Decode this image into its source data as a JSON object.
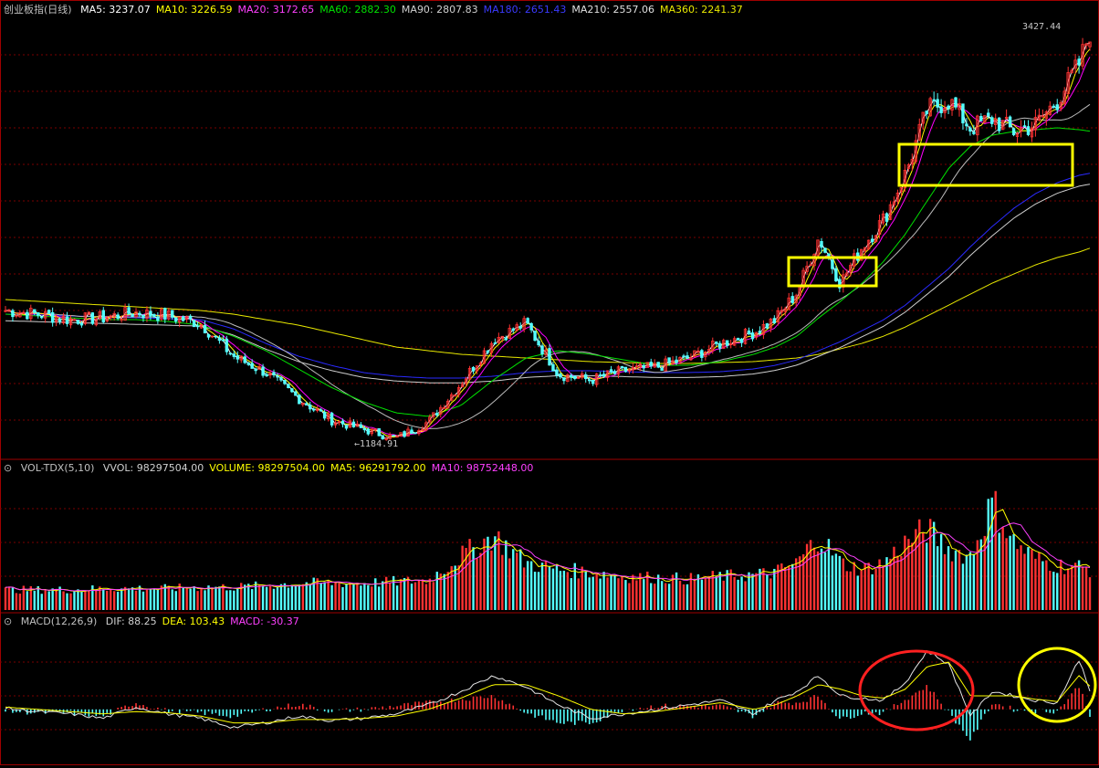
{
  "colors": {
    "up": "#ff3232",
    "down": "#54ffff",
    "grid": "#7a0000",
    "ma5": "#ffffff",
    "ma10": "#ffff00",
    "ma20": "#ff00ff",
    "ma60": "#00e000",
    "ma90": "#ffffff",
    "ma180": "#2a2aff",
    "ma210": "#ffffff",
    "ma360": "#e8e800",
    "box": "#ffff00",
    "circle_red": "#ff2020",
    "circle_yellow": "#ffff00"
  },
  "main": {
    "title": "创业板指(日线)",
    "ma": [
      {
        "label": "MA5: 3237.07",
        "color": "#ffffff"
      },
      {
        "label": "MA10: 3226.59",
        "color": "#ffff00"
      },
      {
        "label": "MA20: 3172.65",
        "color": "#ff40ff"
      },
      {
        "label": "MA60: 2882.30",
        "color": "#00e000"
      },
      {
        "label": "MA90: 2807.83",
        "color": "#d0d0d0"
      },
      {
        "label": "MA180: 2651.43",
        "color": "#3a3aff"
      },
      {
        "label": "MA210: 2557.06",
        "color": "#e0e0e0"
      },
      {
        "label": "MA360: 2241.37",
        "color": "#e8e800"
      }
    ],
    "high_label": "3427.44",
    "low_label": "1184.91"
  },
  "volume": {
    "title": "VOL-TDX(5,10)",
    "items": [
      {
        "label": "VVOL: 98297504.00",
        "color": "#d0d0d0"
      },
      {
        "label": "VOLUME: 98297504.00",
        "color": "#ffff00"
      },
      {
        "label": "MA5: 96291792.00",
        "color": "#ffff00"
      },
      {
        "label": "MA10: 98752448.00",
        "color": "#ff40ff"
      }
    ]
  },
  "macd": {
    "title": "MACD(12,26,9)",
    "items": [
      {
        "label": "DIF: 88.25",
        "color": "#d0d0d0"
      },
      {
        "label": "DEA: 103.43",
        "color": "#ffff00"
      },
      {
        "label": "MACD: -30.37",
        "color": "#ff40ff"
      }
    ]
  },
  "chart_data": {
    "type": "line",
    "x": [
      0,
      0.03,
      0.06,
      0.09,
      0.12,
      0.15,
      0.18,
      0.21,
      0.24,
      0.27,
      0.3,
      0.33,
      0.36,
      0.39,
      0.42,
      0.45,
      0.48,
      0.51,
      0.54,
      0.57,
      0.6,
      0.63,
      0.66,
      0.69,
      0.71,
      0.73,
      0.75,
      0.77,
      0.79,
      0.81,
      0.83,
      0.85,
      0.87,
      0.89,
      0.91,
      0.93,
      0.95,
      0.97,
      0.99,
      1.0
    ],
    "close": [
      1900,
      1880,
      1850,
      1860,
      1890,
      1870,
      1830,
      1650,
      1560,
      1420,
      1300,
      1250,
      1200,
      1290,
      1500,
      1740,
      1830,
      1550,
      1520,
      1570,
      1590,
      1640,
      1720,
      1780,
      1850,
      2000,
      2300,
      2050,
      2250,
      2400,
      2650,
      3000,
      3050,
      2900,
      2950,
      2880,
      2920,
      3050,
      3250,
      3427
    ],
    "ma60": [
      1880,
      1870,
      1860,
      1850,
      1850,
      1840,
      1820,
      1760,
      1680,
      1580,
      1480,
      1400,
      1340,
      1320,
      1380,
      1520,
      1640,
      1680,
      1660,
      1630,
      1600,
      1600,
      1620,
      1660,
      1700,
      1760,
      1860,
      1950,
      2050,
      2170,
      2320,
      2500,
      2680,
      2800,
      2860,
      2880,
      2890,
      2900,
      2890,
      2882
    ],
    "ma180": [
      1880,
      1875,
      1870,
      1865,
      1860,
      1855,
      1850,
      1800,
      1720,
      1650,
      1600,
      1560,
      1540,
      1530,
      1530,
      1540,
      1560,
      1570,
      1570,
      1565,
      1560,
      1560,
      1565,
      1580,
      1600,
      1630,
      1680,
      1730,
      1790,
      1850,
      1930,
      2030,
      2130,
      2250,
      2360,
      2460,
      2540,
      2600,
      2640,
      2651
    ],
    "ma360": [
      1960,
      1950,
      1940,
      1930,
      1920,
      1910,
      1900,
      1880,
      1850,
      1820,
      1780,
      1740,
      1700,
      1680,
      1660,
      1650,
      1640,
      1630,
      1620,
      1615,
      1610,
      1610,
      1615,
      1620,
      1630,
      1640,
      1660,
      1690,
      1720,
      1760,
      1810,
      1870,
      1930,
      1990,
      2050,
      2100,
      2150,
      2190,
      2220,
      2241
    ],
    "ylim": [
      1100,
      3500
    ],
    "volume": [
      0.15,
      0.15,
      0.15,
      0.16,
      0.16,
      0.16,
      0.17,
      0.17,
      0.18,
      0.2,
      0.2,
      0.2,
      0.21,
      0.22,
      0.4,
      0.55,
      0.35,
      0.3,
      0.28,
      0.25,
      0.24,
      0.23,
      0.25,
      0.26,
      0.28,
      0.35,
      0.55,
      0.35,
      0.3,
      0.35,
      0.5,
      0.6,
      0.45,
      0.4,
      0.8,
      0.5,
      0.38,
      0.33,
      0.32,
      0.3
    ],
    "macd_dif": [
      5,
      -10,
      -20,
      -40,
      10,
      -20,
      -40,
      -80,
      -60,
      -30,
      -50,
      -40,
      -20,
      20,
      80,
      150,
      100,
      20,
      -40,
      -20,
      0,
      20,
      40,
      -20,
      40,
      80,
      150,
      60,
      50,
      40,
      120,
      260,
      200,
      -30,
      80,
      60,
      40,
      30,
      220,
      88
    ],
    "macd_dea": [
      10,
      0,
      -10,
      -20,
      -10,
      -15,
      -30,
      -60,
      -60,
      -45,
      -45,
      -40,
      -30,
      0,
      50,
      110,
      110,
      60,
      0,
      -20,
      -10,
      10,
      30,
      0,
      20,
      60,
      110,
      90,
      60,
      50,
      90,
      190,
      210,
      60,
      60,
      60,
      45,
      35,
      150,
      103
    ]
  }
}
